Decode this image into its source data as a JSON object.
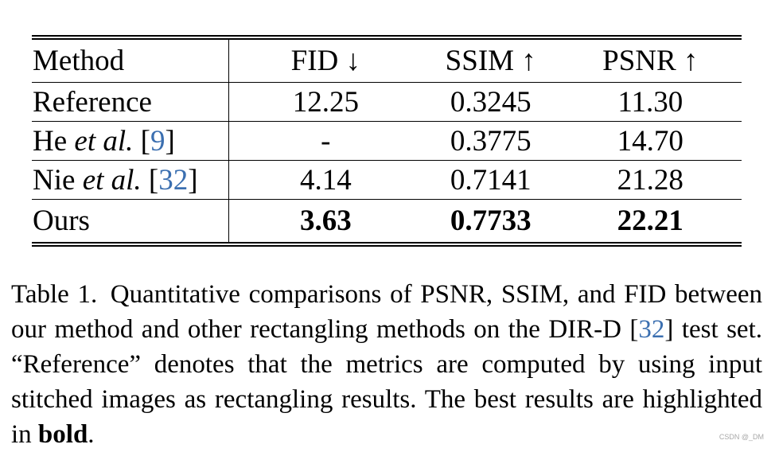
{
  "table": {
    "headers": [
      "Method",
      "FID ↓",
      "SSIM ↑",
      "PSNR ↑"
    ],
    "rows": [
      {
        "method": "Reference",
        "etal": "",
        "cite": "",
        "fid": "12.25",
        "ssim": "0.3245",
        "psnr": "11.30"
      },
      {
        "method": "He ",
        "etal": "et al.",
        "cite": "9",
        "fid": "-",
        "ssim": "0.3775",
        "psnr": "14.70"
      },
      {
        "method": "Nie ",
        "etal": "et al.",
        "cite": "32",
        "fid": "4.14",
        "ssim": "0.7141",
        "psnr": "21.28"
      },
      {
        "method": "Ours",
        "etal": "",
        "cite": "",
        "fid": "3.63",
        "ssim": "0.7733",
        "psnr": "22.21"
      }
    ]
  },
  "caption": {
    "part1": "Table 1. Quantitative comparisons of PSNR, SSIM, and FID between our method and other rectangling methods on the DIR-D [",
    "cite": "32",
    "part2": "] test set. “Reference” denotes that the metrics are computed by using input stitched images as rectangling results. The best results are highlighted in ",
    "bold_word": "bold",
    "end": "."
  },
  "watermark": "CSDN @_DM"
}
